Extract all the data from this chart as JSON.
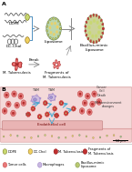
{
  "panel_A_label": "A",
  "panel_B_label": "B",
  "bg_color": "#ffffff",
  "panel_A_bg": "#ffffff",
  "panel_B_tissue_color": "#f2d0d0",
  "panel_B_vessel_color": "#f0b8b8",
  "endothelial_color": "#f0b8b8",
  "tumor_outer": "#e87878",
  "tumor_inner": "#c03030",
  "macro_color": "#c8b8e0",
  "macro_nucleus": "#9880c0",
  "liposome_green": "#a8c890",
  "bacillus_green": "#b0c870",
  "dope_bead": "#c8d870",
  "dc_bead": "#f0d060",
  "mtb_red": "#c03030",
  "arrow_gray": "#888888",
  "arrow_blue": "#40a8d0",
  "border_blue": "#5090c0",
  "text_dark": "#222222",
  "sf": 4.5,
  "tf": 3.2,
  "panel_A_split": 0.5,
  "panel_B_split": 0.18
}
